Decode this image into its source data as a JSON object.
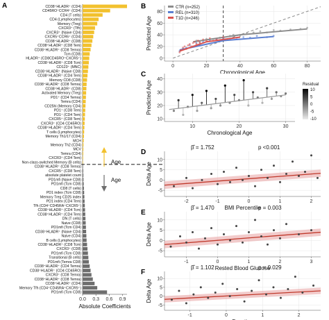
{
  "figure": {
    "panels": [
      "A",
      "B",
      "C",
      "D",
      "E",
      "F"
    ],
    "age_label": "Age"
  },
  "chart_data": [
    {
      "panel": "A",
      "type": "bar",
      "orientation": "horizontal",
      "xlabel": "Absolute Coefficients",
      "xlim": [
        0,
        1.0
      ],
      "xticks": [
        0.0,
        0.3,
        0.6,
        0.9
      ],
      "xtick_labels": [
        "0.0",
        "0.3",
        "0.6",
        "0.9"
      ],
      "colors": {
        "positive": "#F2C12E",
        "negative": "#6e6e6e"
      },
      "annotations": [
        "Age",
        "Age"
      ],
      "categories": [
        "CD38⁺HLADR⁺ (CD4)",
        "CD45RO⁺CCR4⁺ (CD4)",
        "CD4 (T cells)",
        "CD4 (Lymphocytes)",
        "Memory (Treg)",
        "CXCR3⁺ (Tfh)",
        "CXCR3⁺ (Naive CD4)",
        "CXCR5⁺CCR6⁺ (CD4)",
        "CD38⁺HLADR⁺ (CD8)",
        "CD38⁺HLADR⁺ (CD8 Tem)",
        "CD38⁺HLADR⁺ (CD8 Temra)",
        "Tcm (CD8)",
        "HLADR⁺ (CD8CD45RO⁺CXCR5⁺)",
        "CD38⁺HLADR⁺ (CD8 Tcm)",
        "CD123⁺ (MNC)",
        "CD38⁺HLADR⁺ (Naive CD8)",
        "CD38⁺HLADR⁺ (CD4 Tem)",
        "Memory CD8 (CD8)",
        "CD38⁺HLADR⁺ (CD8 Temra)",
        "CD38⁺HLADR⁺ (CD8)",
        "Activated Memory (Treg)",
        "PD1⁺ (CD4 Temra)",
        "Temra (CD4)",
        "CD25hi (Memory CD4)",
        "PD1⁺ (CD8 Tem)",
        "PD1⁺ (CD4 Tem)",
        "CXCR5⁺ (CD8 Tem)",
        "CXCR3⁺ (CD4 CD45RO)",
        "CD38⁺HLADR⁺ (CD4 Tem)",
        "T cells (Lymphocytes)",
        "Memory Th1/17 (CD4)",
        "MCH",
        "Memory Th2 (CD4)",
        "MCV",
        "Temra (CD4)",
        "CXCR3⁺ (CD4 Tem)",
        "Non-class-switched Memory (B cells)",
        "CD38⁺HLADR⁺ (CD8 Temra)",
        "CXCR5⁺ (CD8 Tem)",
        "absolute platelet count",
        "PD1mfi (Naive CD8)",
        "PD1mfi (Tcm CD8)",
        "CD8 (T cells)",
        "PD1 index (Tcm CD8)",
        "Memory Treg CD25 index",
        "PD1 index (CD4 Tem)",
        "Tfh (CD4⁺CD45RA⁺CXCR5⁺)",
        "CD38⁺HLADR⁺ (CD4 Tcm)",
        "CD38⁺HLADR⁺ (CD4 Tem)",
        "DN (T cells)",
        "Naive (CD8)",
        "PD1mfi (Tcm CD4)",
        "CD38⁺HLADR⁺ (Naive CD4)",
        "Naive (CD4)",
        "B cells (Lymphocytes)",
        "CD38⁺HLADR⁺ (CD8 Tcm)",
        "CXCR3⁺ (CD8)",
        "PD1mfi (Tcm CD8)",
        "Transitional (B cells)",
        "PD1mfi (Temra CD8)",
        "CD38⁺HLADR⁺ (CD4 Temra)",
        "CD38⁺HLADR⁺ (CD4 CD45RO)",
        "CXCR3⁺ (CD8 Temra)",
        "CD38⁺HLADR⁺ (CD8 Temra)",
        "CD38⁺HLADR⁺ (CD4)",
        "Memory Tfh (CD4⁺CD45RA⁺CXCR5⁺)",
        "PD1mfi (Tcm CD8)"
      ],
      "values": [
        1.0,
        0.62,
        0.45,
        0.36,
        0.33,
        0.28,
        0.26,
        0.24,
        0.22,
        0.2,
        0.18,
        0.16,
        0.15,
        0.14,
        0.13,
        0.12,
        0.11,
        0.1,
        0.09,
        0.085,
        0.08,
        0.075,
        0.07,
        0.065,
        0.06,
        0.055,
        0.05,
        0.045,
        0.04,
        0.035,
        0.03,
        0.025,
        0.02,
        0.018,
        0.015,
        0.012,
        0.01,
        0.01,
        0.015,
        0.018,
        0.02,
        0.025,
        0.03,
        0.035,
        0.04,
        0.045,
        0.05,
        0.055,
        0.06,
        0.065,
        0.07,
        0.075,
        0.08,
        0.085,
        0.09,
        0.1,
        0.11,
        0.12,
        0.13,
        0.14,
        0.16,
        0.18,
        0.2,
        0.23,
        0.27,
        0.33,
        0.55
      ],
      "positive_count": 37
    },
    {
      "panel": "B",
      "type": "scatter",
      "xlabel": "Chronological Age",
      "ylabel": "Predicted Age",
      "xlim": [
        -5,
        88
      ],
      "ylim": [
        -5,
        90
      ],
      "xticks": [
        0,
        20,
        40,
        60,
        80
      ],
      "yticks": [
        0,
        20,
        40,
        60,
        80
      ],
      "dashed_vline_x": 30,
      "series": [
        {
          "name": "CTR (n=252)",
          "color": "#8c8c8c",
          "fit": [
            [
              12,
              28
            ],
            [
              40,
              40
            ],
            [
              80,
              50
            ]
          ],
          "points": [
            [
              14,
              30
            ],
            [
              16,
              27
            ],
            [
              20,
              33
            ],
            [
              24,
              30
            ],
            [
              28,
              35
            ],
            [
              30,
              34
            ],
            [
              34,
              38
            ],
            [
              36,
              40
            ],
            [
              40,
              38
            ],
            [
              44,
              42
            ],
            [
              48,
              44
            ],
            [
              52,
              46
            ],
            [
              56,
              44
            ],
            [
              60,
              48
            ],
            [
              64,
              47
            ],
            [
              70,
              49
            ],
            [
              76,
              50
            ],
            [
              80,
              52
            ]
          ]
        },
        {
          "name": "REL (n=310)",
          "color": "#5b7fd1",
          "fit": [
            [
              4,
              14
            ],
            [
              30,
              30
            ],
            [
              60,
              37
            ]
          ],
          "points": [
            [
              4,
              12
            ],
            [
              6,
              16
            ],
            [
              8,
              18
            ],
            [
              10,
              22
            ],
            [
              12,
              20
            ],
            [
              14,
              26
            ],
            [
              16,
              24
            ],
            [
              18,
              28
            ],
            [
              22,
              30
            ],
            [
              26,
              32
            ],
            [
              30,
              34
            ],
            [
              34,
              33
            ],
            [
              38,
              35
            ],
            [
              42,
              36
            ],
            [
              46,
              35
            ],
            [
              50,
              38
            ],
            [
              56,
              36
            ],
            [
              60,
              38
            ]
          ]
        },
        {
          "name": "T1D (n=246)",
          "color": "#d9534f",
          "fit": [
            [
              4,
              12
            ],
            [
              20,
              28
            ],
            [
              40,
              36
            ]
          ],
          "points": [
            [
              4,
              10
            ],
            [
              5,
              14
            ],
            [
              6,
              18
            ],
            [
              7,
              20
            ],
            [
              8,
              16
            ],
            [
              9,
              22
            ],
            [
              10,
              24
            ],
            [
              11,
              20
            ],
            [
              12,
              26
            ],
            [
              13,
              28
            ],
            [
              14,
              24
            ],
            [
              15,
              30
            ],
            [
              16,
              27
            ],
            [
              18,
              32
            ],
            [
              20,
              30
            ],
            [
              22,
              34
            ],
            [
              26,
              32
            ],
            [
              30,
              36
            ]
          ]
        }
      ]
    },
    {
      "panel": "C",
      "type": "scatter",
      "xlabel": "Chronological Age",
      "ylabel": "Predicted Age",
      "xlim": [
        4,
        32
      ],
      "ylim": [
        8,
        44
      ],
      "xticks": [
        10,
        20,
        30
      ],
      "yticks": [
        10,
        20,
        30,
        40
      ],
      "legend_title": "Residual",
      "legend_ticks": [
        10,
        5,
        0,
        -5,
        -10
      ],
      "fit": [
        [
          5,
          17
        ],
        [
          30,
          28
        ]
      ],
      "points": [
        [
          6,
          16,
          -1
        ],
        [
          7,
          24,
          6
        ],
        [
          8,
          13,
          -5
        ],
        [
          9,
          19,
          0
        ],
        [
          10,
          28,
          9
        ],
        [
          11,
          16,
          -3
        ],
        [
          12,
          22,
          2
        ],
        [
          13,
          31,
          10
        ],
        [
          14,
          18,
          -3
        ],
        [
          15,
          25,
          4
        ],
        [
          16,
          20,
          -2
        ],
        [
          17,
          35,
          12
        ],
        [
          18,
          22,
          -1
        ],
        [
          19,
          28,
          4
        ],
        [
          20,
          24,
          0
        ],
        [
          21,
          39,
          14
        ],
        [
          22,
          20,
          -5
        ],
        [
          23,
          30,
          4
        ],
        [
          24,
          26,
          0
        ],
        [
          25,
          22,
          -5
        ],
        [
          26,
          33,
          5
        ],
        [
          27,
          25,
          -3
        ],
        [
          28,
          30,
          1
        ],
        [
          29,
          27,
          -2
        ],
        [
          30,
          29,
          0
        ]
      ]
    },
    {
      "panel": "D",
      "type": "scatter",
      "xlabel": "BMI Percentile",
      "ylabel": "Delta Age",
      "stat_text": "β̂ = 1.752",
      "p_text": "p <0.001",
      "xlim": [
        -2.7,
        2.3
      ],
      "ylim": [
        -8,
        14
      ],
      "xticks": [
        -2,
        -1,
        0,
        1,
        2
      ],
      "yticks": [
        -5,
        0,
        5,
        10
      ],
      "fit": [
        [
          -2.7,
          -2.5
        ],
        [
          2.3,
          3.3
        ]
      ],
      "points": [
        [
          -2.4,
          -3
        ],
        [
          -2.0,
          1
        ],
        [
          -1.8,
          -4
        ],
        [
          -1.5,
          0
        ],
        [
          -1.2,
          3
        ],
        [
          -1.0,
          -2
        ],
        [
          -0.8,
          4
        ],
        [
          -0.6,
          -1
        ],
        [
          -0.4,
          6
        ],
        [
          -0.2,
          0
        ],
        [
          0.0,
          2
        ],
        [
          0.2,
          -3
        ],
        [
          0.4,
          5
        ],
        [
          0.6,
          1
        ],
        [
          0.8,
          7
        ],
        [
          1.0,
          -1
        ],
        [
          1.2,
          3
        ],
        [
          1.4,
          9
        ],
        [
          1.6,
          2
        ],
        [
          1.8,
          4
        ],
        [
          2.0,
          12
        ],
        [
          2.2,
          1
        ]
      ]
    },
    {
      "panel": "E",
      "type": "scatter",
      "xlabel": "Rested Blood Glucose",
      "ylabel": "Delta Age",
      "stat_text": "β̂ = 1.470",
      "p_text": "p = 0.003",
      "xlim": [
        -1.7,
        3.3
      ],
      "ylim": [
        -8,
        14
      ],
      "xticks": [
        -1,
        0,
        1,
        2,
        3
      ],
      "yticks": [
        -5,
        0,
        5,
        10
      ],
      "fit": [
        [
          -1.7,
          -2.0
        ],
        [
          3.3,
          4.0
        ]
      ],
      "points": [
        [
          -1.5,
          -3
        ],
        [
          -1.2,
          2
        ],
        [
          -1.0,
          -1
        ],
        [
          -0.8,
          4
        ],
        [
          -0.6,
          -4
        ],
        [
          -0.4,
          1
        ],
        [
          -0.2,
          6
        ],
        [
          0.0,
          -2
        ],
        [
          0.2,
          3
        ],
        [
          0.4,
          0
        ],
        [
          0.6,
          7
        ],
        [
          0.8,
          -1
        ],
        [
          1.0,
          4
        ],
        [
          1.2,
          10
        ],
        [
          1.4,
          2
        ],
        [
          1.6,
          -2
        ],
        [
          1.8,
          5
        ],
        [
          2.0,
          1
        ],
        [
          2.2,
          8
        ],
        [
          2.6,
          3
        ],
        [
          3.0,
          5
        ]
      ]
    },
    {
      "panel": "F",
      "type": "scatter",
      "xlabel": "Duration",
      "ylabel": "Delta Age",
      "stat_text": "β̂ = 1.102",
      "p_text": "p = 0.029",
      "xlim": [
        -1.7,
        2.6
      ],
      "ylim": [
        -8,
        14
      ],
      "xticks": [
        -1,
        0,
        1,
        2
      ],
      "yticks": [
        -5,
        0,
        5,
        10
      ],
      "fit": [
        [
          -1.7,
          -1.8
        ],
        [
          2.6,
          3.0
        ]
      ],
      "points": [
        [
          -1.5,
          -2
        ],
        [
          -1.3,
          3
        ],
        [
          -1.1,
          -4
        ],
        [
          -0.9,
          1
        ],
        [
          -0.7,
          5
        ],
        [
          -0.5,
          -1
        ],
        [
          -0.3,
          2
        ],
        [
          -0.1,
          7
        ],
        [
          0.1,
          0
        ],
        [
          0.3,
          4
        ],
        [
          0.5,
          -3
        ],
        [
          0.7,
          3
        ],
        [
          0.9,
          9
        ],
        [
          1.1,
          1
        ],
        [
          1.3,
          5
        ],
        [
          1.5,
          -1
        ],
        [
          1.7,
          4
        ],
        [
          1.9,
          11
        ],
        [
          2.1,
          2
        ],
        [
          2.4,
          6
        ]
      ]
    }
  ]
}
